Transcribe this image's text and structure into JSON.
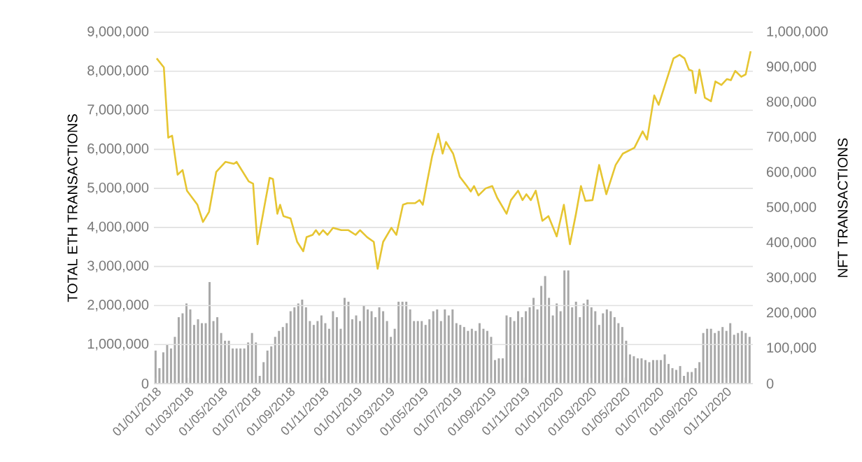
{
  "chart_data": {
    "type": "line",
    "ylabel": "TOTAL ETH TRANSACTIONS",
    "y2label": "NFT TRANSACTIONS",
    "xlim": [
      "2017-12-29",
      "2020-12-20"
    ],
    "xticks": [
      {
        "value": "2018-01-01",
        "label": "01/01/2018"
      },
      {
        "value": "2018-03-01",
        "label": "01/03/2018"
      },
      {
        "value": "2018-05-01",
        "label": "01/05/2018"
      },
      {
        "value": "2018-07-01",
        "label": "01/07/2018"
      },
      {
        "value": "2018-09-01",
        "label": "01/09/2018"
      },
      {
        "value": "2018-11-01",
        "label": "01/11/2018"
      },
      {
        "value": "2019-01-01",
        "label": "01/01/2019"
      },
      {
        "value": "2019-03-01",
        "label": "01/03/2019"
      },
      {
        "value": "2019-05-01",
        "label": "01/05/2019"
      },
      {
        "value": "2019-07-01",
        "label": "01/07/2019"
      },
      {
        "value": "2019-09-01",
        "label": "01/09/2019"
      },
      {
        "value": "2019-11-01",
        "label": "01/11/2019"
      },
      {
        "value": "2020-01-01",
        "label": "01/01/2020"
      },
      {
        "value": "2020-03-01",
        "label": "01/03/2020"
      },
      {
        "value": "2020-05-01",
        "label": "01/05/2020"
      },
      {
        "value": "2020-07-01",
        "label": "01/07/2020"
      },
      {
        "value": "2020-09-01",
        "label": "01/09/2020"
      },
      {
        "value": "2020-11-01",
        "label": "01/11/2020"
      }
    ],
    "ylim": [
      0,
      9000000
    ],
    "yticks": [
      {
        "value": 0,
        "label": "0"
      },
      {
        "value": 1000000,
        "label": "1,000,000"
      },
      {
        "value": 2000000,
        "label": "2,000,000"
      },
      {
        "value": 3000000,
        "label": "3,000,000"
      },
      {
        "value": 4000000,
        "label": "4,000,000"
      },
      {
        "value": 5000000,
        "label": "5,000,000"
      },
      {
        "value": 6000000,
        "label": "6,000,000"
      },
      {
        "value": 7000000,
        "label": "7,000,000"
      },
      {
        "value": 8000000,
        "label": "8,000,000"
      },
      {
        "value": 9000000,
        "label": "9,000,000"
      }
    ],
    "y2lim": [
      0,
      1000000
    ],
    "y2ticks": [
      {
        "value": 0,
        "label": "0"
      },
      {
        "value": 100000,
        "label": "100,000"
      },
      {
        "value": 200000,
        "label": "200,000"
      },
      {
        "value": 300000,
        "label": "300,000"
      },
      {
        "value": 400000,
        "label": "400,000"
      },
      {
        "value": 500000,
        "label": "500,000"
      },
      {
        "value": 600000,
        "label": "600,000"
      },
      {
        "value": 700000,
        "label": "700,000"
      },
      {
        "value": 800000,
        "label": "800,000"
      },
      {
        "value": 900000,
        "label": "900,000"
      },
      {
        "value": 1000000,
        "label": "1,000,000"
      }
    ],
    "grid": "y",
    "series": [
      {
        "type": "bar",
        "axis": "y2",
        "color": "#a8a8a8",
        "x": [
          "2018-01-01",
          "2018-01-08",
          "2018-01-15",
          "2018-01-22",
          "2018-01-29",
          "2018-02-05",
          "2018-02-12",
          "2018-02-19",
          "2018-02-26",
          "2018-03-05",
          "2018-03-12",
          "2018-03-19",
          "2018-03-26",
          "2018-04-02",
          "2018-04-09",
          "2018-04-16",
          "2018-04-23",
          "2018-04-30",
          "2018-05-07",
          "2018-05-14",
          "2018-05-21",
          "2018-05-28",
          "2018-06-04",
          "2018-06-11",
          "2018-06-18",
          "2018-06-25",
          "2018-07-02",
          "2018-07-09",
          "2018-07-16",
          "2018-07-23",
          "2018-07-30",
          "2018-08-06",
          "2018-08-13",
          "2018-08-20",
          "2018-08-27",
          "2018-09-03",
          "2018-09-10",
          "2018-09-17",
          "2018-09-24",
          "2018-10-01",
          "2018-10-08",
          "2018-10-15",
          "2018-10-22",
          "2018-10-29",
          "2018-11-05",
          "2018-11-12",
          "2018-11-19",
          "2018-11-26",
          "2018-12-03",
          "2018-12-10",
          "2018-12-17",
          "2018-12-24",
          "2018-12-31",
          "2019-01-07",
          "2019-01-14",
          "2019-01-21",
          "2019-01-28",
          "2019-02-04",
          "2019-02-11",
          "2019-02-18",
          "2019-02-25",
          "2019-03-04",
          "2019-03-11",
          "2019-03-18",
          "2019-03-25",
          "2019-04-01",
          "2019-04-08",
          "2019-04-15",
          "2019-04-22",
          "2019-04-29",
          "2019-05-06",
          "2019-05-13",
          "2019-05-20",
          "2019-05-27",
          "2019-06-03",
          "2019-06-10",
          "2019-06-17",
          "2019-06-24",
          "2019-07-01",
          "2019-07-08",
          "2019-07-15",
          "2019-07-22",
          "2019-07-29",
          "2019-08-05",
          "2019-08-12",
          "2019-08-19",
          "2019-08-26",
          "2019-09-02",
          "2019-09-09",
          "2019-09-16",
          "2019-09-23",
          "2019-09-30",
          "2019-10-07",
          "2019-10-14",
          "2019-10-21",
          "2019-10-28",
          "2019-11-04",
          "2019-11-11",
          "2019-11-18",
          "2019-11-25",
          "2019-12-02",
          "2019-12-09",
          "2019-12-16",
          "2019-12-23",
          "2019-12-30",
          "2020-01-06",
          "2020-01-13",
          "2020-01-20",
          "2020-01-27",
          "2020-02-03",
          "2020-02-10",
          "2020-02-17",
          "2020-02-24",
          "2020-03-02",
          "2020-03-09",
          "2020-03-16",
          "2020-03-23",
          "2020-03-30",
          "2020-04-06",
          "2020-04-13",
          "2020-04-20",
          "2020-04-27",
          "2020-05-04",
          "2020-05-11",
          "2020-05-18",
          "2020-05-25",
          "2020-06-01",
          "2020-06-08",
          "2020-06-15",
          "2020-06-22",
          "2020-06-29",
          "2020-07-06",
          "2020-07-13",
          "2020-07-20",
          "2020-07-27",
          "2020-08-03",
          "2020-08-10",
          "2020-08-17",
          "2020-08-24",
          "2020-08-31",
          "2020-09-07",
          "2020-09-14",
          "2020-09-21",
          "2020-09-28",
          "2020-10-05",
          "2020-10-12",
          "2020-10-19",
          "2020-10-26",
          "2020-11-02",
          "2020-11-09",
          "2020-11-16",
          "2020-11-23",
          "2020-11-30",
          "2020-12-07",
          "2020-12-14"
        ],
        "values": [
          94000,
          44000,
          89000,
          111000,
          100000,
          133000,
          189000,
          200000,
          228000,
          211000,
          167000,
          183000,
          172000,
          172000,
          289000,
          178000,
          189000,
          144000,
          122000,
          122000,
          100000,
          100000,
          100000,
          100000,
          117000,
          144000,
          117000,
          22000,
          61000,
          94000,
          106000,
          133000,
          150000,
          161000,
          172000,
          206000,
          217000,
          228000,
          239000,
          217000,
          178000,
          167000,
          178000,
          194000,
          172000,
          156000,
          206000,
          189000,
          156000,
          244000,
          233000,
          183000,
          194000,
          178000,
          222000,
          211000,
          206000,
          189000,
          217000,
          206000,
          178000,
          133000,
          156000,
          233000,
          233000,
          233000,
          211000,
          178000,
          178000,
          178000,
          167000,
          183000,
          206000,
          211000,
          178000,
          211000,
          194000,
          211000,
          172000,
          167000,
          161000,
          150000,
          156000,
          150000,
          172000,
          156000,
          150000,
          133000,
          67000,
          72000,
          72000,
          194000,
          189000,
          178000,
          206000,
          189000,
          206000,
          217000,
          244000,
          211000,
          278000,
          306000,
          244000,
          194000,
          228000,
          206000,
          322000,
          322000,
          217000,
          233000,
          189000,
          228000,
          239000,
          217000,
          206000,
          167000,
          200000,
          211000,
          206000,
          189000,
          172000,
          161000,
          122000,
          83000,
          78000,
          72000,
          72000,
          67000,
          61000,
          67000,
          67000,
          67000,
          83000,
          56000,
          44000,
          39000,
          50000,
          22000,
          33000,
          33000,
          44000,
          61000,
          144000,
          156000,
          156000,
          144000,
          150000,
          161000,
          150000,
          172000,
          139000,
          144000,
          150000,
          144000,
          133000
        ]
      },
      {
        "axis": "y",
        "color": "#e6c531",
        "x": [
          "2018-01-03",
          "2018-01-16",
          "2018-01-24",
          "2018-01-31",
          "2018-02-10",
          "2018-02-19",
          "2018-02-27",
          "2018-03-18",
          "2018-03-28",
          "2018-04-08",
          "2018-04-21",
          "2018-05-08",
          "2018-05-23",
          "2018-05-28",
          "2018-06-19",
          "2018-06-27",
          "2018-07-05",
          "2018-07-18",
          "2018-07-27",
          "2018-08-02",
          "2018-08-10",
          "2018-08-15",
          "2018-08-21",
          "2018-09-03",
          "2018-09-15",
          "2018-09-26",
          "2018-10-02",
          "2018-10-13",
          "2018-10-19",
          "2018-10-25",
          "2018-11-01",
          "2018-11-09",
          "2018-11-19",
          "2018-12-04",
          "2018-12-17",
          "2018-12-30",
          "2019-01-07",
          "2019-01-20",
          "2019-02-01",
          "2019-02-08",
          "2019-02-18",
          "2019-03-05",
          "2019-03-14",
          "2019-03-26",
          "2019-04-03",
          "2019-04-17",
          "2019-04-25",
          "2019-05-01",
          "2019-05-09",
          "2019-05-18",
          "2019-05-29",
          "2019-06-06",
          "2019-06-12",
          "2019-06-25",
          "2019-07-07",
          "2019-07-20",
          "2019-07-27",
          "2019-08-02",
          "2019-08-10",
          "2019-08-23",
          "2019-09-04",
          "2019-09-13",
          "2019-09-30",
          "2019-10-08",
          "2019-10-21",
          "2019-10-29",
          "2019-11-05",
          "2019-11-13",
          "2019-11-22",
          "2019-12-04",
          "2019-12-15",
          "2019-12-30",
          "2020-01-12",
          "2020-01-23",
          "2020-02-03",
          "2020-02-12",
          "2020-02-20",
          "2020-03-04",
          "2020-03-16",
          "2020-03-29",
          "2020-04-15",
          "2020-04-28",
          "2020-05-19",
          "2020-06-03",
          "2020-06-11",
          "2020-06-24",
          "2020-07-02",
          "2020-07-17",
          "2020-07-29",
          "2020-08-09",
          "2020-08-18",
          "2020-08-26",
          "2020-09-01",
          "2020-09-07",
          "2020-09-14",
          "2020-09-24",
          "2020-10-05",
          "2020-10-13",
          "2020-10-24",
          "2020-11-03",
          "2020-11-10",
          "2020-11-18",
          "2020-11-29",
          "2020-12-07",
          "2020-12-16"
        ],
        "values": [
          8330000,
          8100000,
          6300000,
          6350000,
          5350000,
          5470000,
          4940000,
          4580000,
          4140000,
          4400000,
          5420000,
          5680000,
          5630000,
          5680000,
          5180000,
          5120000,
          3570000,
          4580000,
          5270000,
          5240000,
          4350000,
          4580000,
          4290000,
          4230000,
          3630000,
          3390000,
          3750000,
          3810000,
          3930000,
          3810000,
          3930000,
          3810000,
          3990000,
          3930000,
          3930000,
          3810000,
          3930000,
          3750000,
          3630000,
          2940000,
          3630000,
          3990000,
          3810000,
          4580000,
          4620000,
          4620000,
          4700000,
          4580000,
          5180000,
          5830000,
          6400000,
          5890000,
          6190000,
          5890000,
          5300000,
          5060000,
          4920000,
          5060000,
          4820000,
          5000000,
          5060000,
          4760000,
          4350000,
          4700000,
          4940000,
          4700000,
          4850000,
          4700000,
          4940000,
          4170000,
          4290000,
          3770000,
          4580000,
          3570000,
          4350000,
          5060000,
          4680000,
          4700000,
          5600000,
          4850000,
          5600000,
          5890000,
          6040000,
          6460000,
          6250000,
          7380000,
          7140000,
          7800000,
          8330000,
          8420000,
          8330000,
          8040000,
          8010000,
          7440000,
          8040000,
          7320000,
          7230000,
          7740000,
          7650000,
          7800000,
          7770000,
          8010000,
          7860000,
          7920000,
          8510000
        ]
      }
    ]
  }
}
